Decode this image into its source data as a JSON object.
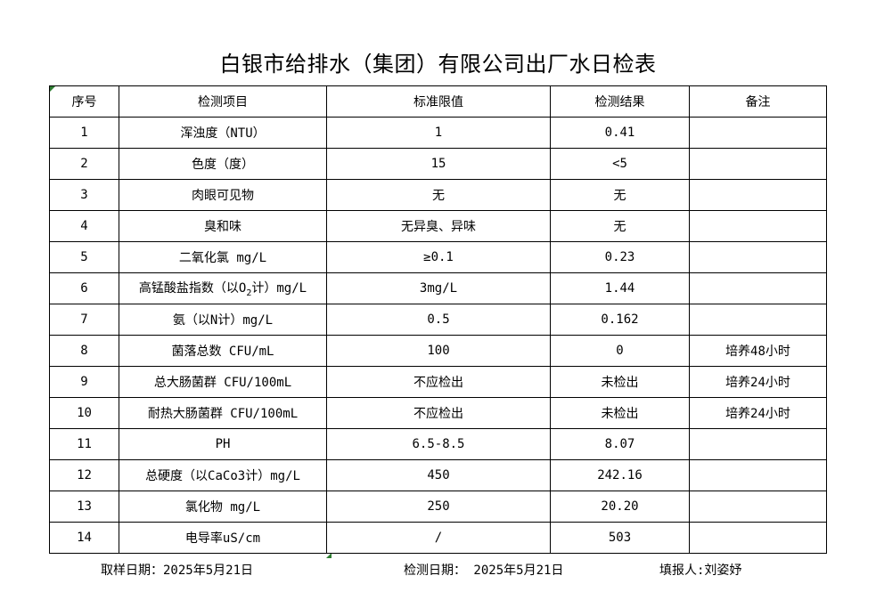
{
  "title": "白银市给排水（集团）有限公司出厂水日检表",
  "headers": [
    "序号",
    "检测项目",
    "标准限值",
    "检测结果",
    "备注"
  ],
  "rows": [
    {
      "no": "1",
      "item": "浑浊度（NTU）",
      "limit": "1",
      "result": "0.41",
      "note": ""
    },
    {
      "no": "2",
      "item": "色度（度）",
      "limit": "15",
      "result": "<5",
      "note": ""
    },
    {
      "no": "3",
      "item": "肉眼可见物",
      "limit": "无",
      "result": "无",
      "note": ""
    },
    {
      "no": "4",
      "item": "臭和味",
      "limit": "无异臭、异味",
      "result": "无",
      "note": ""
    },
    {
      "no": "5",
      "item": "二氧化氯 mg/L",
      "limit": "≥0.1",
      "result": "0.23",
      "note": ""
    },
    {
      "no": "6",
      "item_pre": "高锰酸盐指数（以O",
      "item_sub": "2",
      "item_post": "计）mg/L",
      "limit": "3mg/L",
      "result": "1.44",
      "note": ""
    },
    {
      "no": "7",
      "item": "氨（以N计）mg/L",
      "limit": "0.5",
      "result": "0.162",
      "note": ""
    },
    {
      "no": "8",
      "item": "菌落总数 CFU/mL",
      "limit": "100",
      "result": "0",
      "note": "培养48小时"
    },
    {
      "no": "9",
      "item": "总大肠菌群 CFU/100mL",
      "limit": "不应检出",
      "result": "未检出",
      "note": "培养24小时"
    },
    {
      "no": "10",
      "item": "耐热大肠菌群 CFU/100mL",
      "limit": "不应检出",
      "result": "未检出",
      "note": "培养24小时"
    },
    {
      "no": "11",
      "item": "PH",
      "limit": "6.5-8.5",
      "result": "8.07",
      "note": ""
    },
    {
      "no": "12",
      "item": "总硬度（以CaCo3计）mg/L",
      "limit": "450",
      "result": "242.16",
      "note": ""
    },
    {
      "no": "13",
      "item": "氯化物 mg/L",
      "limit": "250",
      "result": "20.20",
      "note": ""
    },
    {
      "no": "14",
      "item": "电导率uS/cm",
      "limit": "/",
      "result": "503",
      "note": ""
    }
  ],
  "footer": {
    "sampling_date": "取样日期：2025年5月21日",
    "test_date": "检测日期： 2025年5月21日",
    "reporter": "填报人:刘姿妤"
  },
  "colors": {
    "cell_marker": "#2e7d32"
  }
}
